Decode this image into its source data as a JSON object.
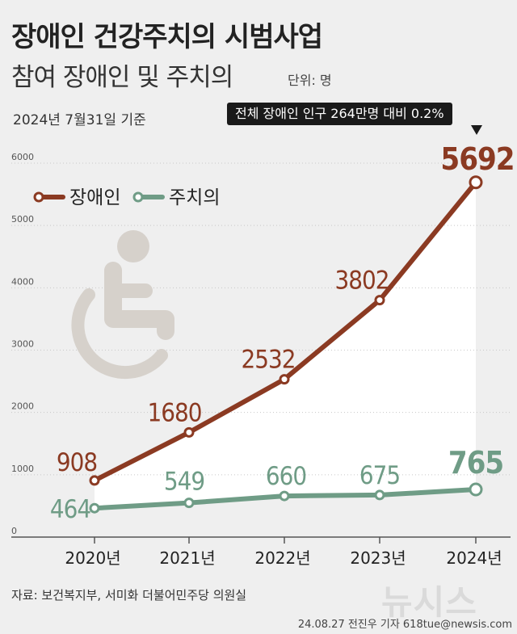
{
  "header": {
    "title": "장애인 건강주치의 시범사업",
    "subtitle": "참여 장애인 및 주치의",
    "unit": "단위: 명",
    "basis_date": "2024년 7월31일 기준",
    "callout": "전체 장애인 인구 264만명 대비 0.2%"
  },
  "footer": {
    "source": "자료: 보건복지부, 서미화 더불어민주당 의원실",
    "byline": "24.08.27 전진우 기자 618tue@newsis.com",
    "watermark": "뉴시스"
  },
  "colors": {
    "disabled_line": "#8b3a22",
    "doctor_line": "#6f9c86",
    "area_fill": "#ffffff",
    "background": "#efefef",
    "icon": "#d6d1cb"
  },
  "icon": "wheelchair-icon",
  "chart_data": {
    "type": "line",
    "categories": [
      "2020년",
      "2021년",
      "2022년",
      "2023년",
      "2024년"
    ],
    "series": [
      {
        "name": "장애인",
        "values": [
          908,
          1680,
          2532,
          3802,
          5692
        ]
      },
      {
        "name": "주치의",
        "values": [
          464,
          549,
          660,
          675,
          765
        ]
      }
    ],
    "value_labels": {
      "장애인": [
        "908",
        "1680",
        "2532",
        "3802",
        "5692"
      ],
      "주치의": [
        "464",
        "549",
        "660",
        "675",
        "765"
      ]
    },
    "y_ticks": [
      "0",
      "1000",
      "2000",
      "3000",
      "4000",
      "5000",
      "6000"
    ],
    "ylim": [
      0,
      6000
    ],
    "grid": true,
    "legend_position": "top-left"
  }
}
